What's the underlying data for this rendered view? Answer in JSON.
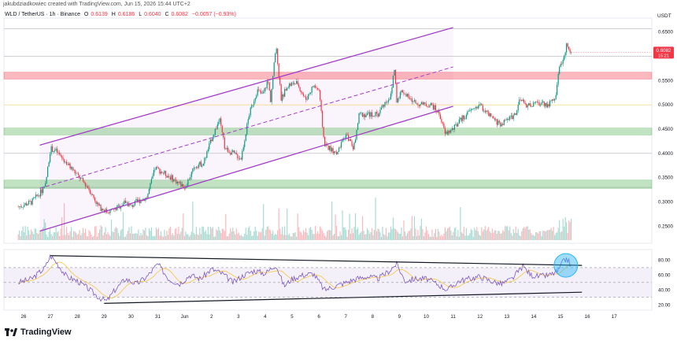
{
  "header": {
    "attribution": "jakubdziadkowiec created with TradingView.com, Jun 15, 2026 15:44 UTC+2",
    "symbol": "WLD / TetherUS · 1h · Binance",
    "ohlc": {
      "o_label": "O",
      "o": "0.6139",
      "h_label": "H",
      "h": "0.6186",
      "l_label": "L",
      "l": "0.6040",
      "c_label": "C",
      "c": "0.6082",
      "change": "−0.0057 (−0.93%)"
    },
    "currency": "USDT"
  },
  "price_label": {
    "value": "0.6082",
    "countdown": "15:21",
    "color": "#f23645"
  },
  "footer": {
    "brand": "TradingView"
  },
  "colors": {
    "up": "#089981",
    "down": "#f23645",
    "channel": "#a33fc8",
    "support_zone": "#4caf50",
    "resistance_zone": "#f23645",
    "rsi": "#7e57c2",
    "rsi_ma": "#f5c542",
    "circle": "#29b6f6"
  },
  "chart_data": [
    {
      "type": "candlestick",
      "title": "",
      "x_ticks": [
        "26",
        "27",
        "28",
        "29",
        "30",
        "31",
        "Jun",
        "2",
        "3",
        "4",
        "5",
        "6",
        "7",
        "8",
        "9",
        "10",
        "11",
        "12",
        "13",
        "14",
        "15",
        "16",
        "17"
      ],
      "y_ticks": [
        "0.6500",
        "0.6000",
        "0.5500",
        "0.5000",
        "0.4500",
        "0.4000",
        "0.3500",
        "0.3000",
        "0.2500"
      ],
      "ylim": [
        0.215,
        0.672
      ],
      "zones": [
        {
          "kind": "resistance",
          "from": 0.553,
          "to": 0.567
        },
        {
          "kind": "support",
          "from": 0.438,
          "to": 0.452
        },
        {
          "kind": "support",
          "from": 0.328,
          "to": 0.345
        }
      ],
      "level_lines": [
        0.6565,
        0.6,
        0.5,
        0.4,
        0.33
      ],
      "channel": {
        "lower": [
          {
            "day": 0.6,
            "price": 0.24
          },
          {
            "day": 16,
            "price": 0.497
          }
        ],
        "upper": [
          {
            "day": 0.6,
            "price": 0.417
          },
          {
            "day": 16,
            "price": 0.659
          }
        ],
        "mid": [
          {
            "day": 0.6,
            "price": 0.328
          },
          {
            "day": 16,
            "price": 0.578
          }
        ]
      },
      "anchors": [
        [
          -0.2,
          0.29
        ],
        [
          0.3,
          0.3
        ],
        [
          0.8,
          0.33
        ],
        [
          1.0,
          0.41
        ],
        [
          1.2,
          0.405
        ],
        [
          1.6,
          0.38
        ],
        [
          2.0,
          0.355
        ],
        [
          2.4,
          0.33
        ],
        [
          2.8,
          0.29
        ],
        [
          3.1,
          0.28
        ],
        [
          3.4,
          0.285
        ],
        [
          3.8,
          0.3
        ],
        [
          4.0,
          0.29
        ],
        [
          4.2,
          0.3
        ],
        [
          4.6,
          0.31
        ],
        [
          4.9,
          0.37
        ],
        [
          5.2,
          0.36
        ],
        [
          5.5,
          0.35
        ],
        [
          6.0,
          0.33
        ],
        [
          6.4,
          0.375
        ],
        [
          6.7,
          0.38
        ],
        [
          7.0,
          0.43
        ],
        [
          7.3,
          0.47
        ],
        [
          7.5,
          0.41
        ],
        [
          7.8,
          0.4
        ],
        [
          8.1,
          0.39
        ],
        [
          8.4,
          0.48
        ],
        [
          8.7,
          0.53
        ],
        [
          8.9,
          0.52
        ],
        [
          9.1,
          0.55
        ],
        [
          9.2,
          0.51
        ],
        [
          9.4,
          0.62
        ],
        [
          9.6,
          0.51
        ],
        [
          9.8,
          0.54
        ],
        [
          10.2,
          0.545
        ],
        [
          10.5,
          0.51
        ],
        [
          10.8,
          0.54
        ],
        [
          11.0,
          0.53
        ],
        [
          11.2,
          0.42
        ],
        [
          11.4,
          0.41
        ],
        [
          11.7,
          0.4
        ],
        [
          12.0,
          0.44
        ],
        [
          12.3,
          0.41
        ],
        [
          12.5,
          0.48
        ],
        [
          12.8,
          0.48
        ],
        [
          13.0,
          0.48
        ],
        [
          13.2,
          0.48
        ],
        [
          13.4,
          0.5
        ],
        [
          13.7,
          0.52
        ],
        [
          13.8,
          0.58
        ],
        [
          13.9,
          0.51
        ],
        [
          14.1,
          0.53
        ],
        [
          14.4,
          0.51
        ],
        [
          14.8,
          0.5
        ],
        [
          15.2,
          0.5
        ],
        [
          15.5,
          0.48
        ],
        [
          15.7,
          0.44
        ],
        [
          16.0,
          0.45
        ],
        [
          16.3,
          0.47
        ],
        [
          16.7,
          0.49
        ],
        [
          17.0,
          0.5
        ],
        [
          17.3,
          0.48
        ],
        [
          17.6,
          0.465
        ],
        [
          17.8,
          0.46
        ],
        [
          18.0,
          0.47
        ],
        [
          18.3,
          0.48
        ],
        [
          18.5,
          0.51
        ],
        [
          18.7,
          0.5
        ],
        [
          19.0,
          0.5
        ],
        [
          19.3,
          0.505
        ],
        [
          19.5,
          0.5
        ],
        [
          19.8,
          0.51
        ],
        [
          19.9,
          0.56
        ],
        [
          20.1,
          0.6
        ],
        [
          20.25,
          0.625
        ],
        [
          20.4,
          0.608
        ]
      ],
      "last_price": 0.6082
    },
    {
      "type": "line",
      "title": "",
      "y_ticks": [
        "80.00",
        "60.00",
        "40.00",
        "20.00"
      ],
      "ylim": [
        15,
        90
      ],
      "band": [
        30,
        70
      ],
      "anchors": [
        [
          -0.2,
          50
        ],
        [
          0.3,
          55
        ],
        [
          0.8,
          70
        ],
        [
          1.0,
          86
        ],
        [
          1.2,
          78
        ],
        [
          1.6,
          58
        ],
        [
          2.0,
          52
        ],
        [
          2.4,
          42
        ],
        [
          2.8,
          30
        ],
        [
          3.1,
          25
        ],
        [
          3.4,
          40
        ],
        [
          3.8,
          55
        ],
        [
          4.2,
          48
        ],
        [
          4.6,
          58
        ],
        [
          5.0,
          75
        ],
        [
          5.4,
          55
        ],
        [
          5.8,
          48
        ],
        [
          6.2,
          60
        ],
        [
          6.6,
          55
        ],
        [
          7.0,
          68
        ],
        [
          7.4,
          62
        ],
        [
          7.8,
          50
        ],
        [
          8.2,
          60
        ],
        [
          8.6,
          66
        ],
        [
          9.0,
          62
        ],
        [
          9.4,
          74
        ],
        [
          9.7,
          45
        ],
        [
          10.0,
          55
        ],
        [
          10.4,
          60
        ],
        [
          10.8,
          62
        ],
        [
          11.2,
          40
        ],
        [
          11.6,
          45
        ],
        [
          12.0,
          50
        ],
        [
          12.4,
          55
        ],
        [
          12.8,
          58
        ],
        [
          13.2,
          55
        ],
        [
          13.6,
          65
        ],
        [
          13.9,
          75
        ],
        [
          14.2,
          52
        ],
        [
          14.6,
          55
        ],
        [
          15.0,
          55
        ],
        [
          15.4,
          48
        ],
        [
          15.8,
          40
        ],
        [
          16.2,
          52
        ],
        [
          16.6,
          55
        ],
        [
          17.0,
          58
        ],
        [
          17.4,
          52
        ],
        [
          17.8,
          48
        ],
        [
          18.2,
          55
        ],
        [
          18.6,
          72
        ],
        [
          18.9,
          60
        ],
        [
          19.2,
          58
        ],
        [
          19.6,
          60
        ],
        [
          19.9,
          65
        ],
        [
          20.1,
          78
        ],
        [
          20.25,
          82
        ],
        [
          20.4,
          72
        ]
      ],
      "trend_upper": [
        {
          "day": 1.0,
          "value": 86
        },
        {
          "day": 20.8,
          "value": 73
        }
      ],
      "trend_lower": [
        {
          "day": 3.0,
          "value": 22
        },
        {
          "day": 20.8,
          "value": 37
        }
      ]
    }
  ]
}
